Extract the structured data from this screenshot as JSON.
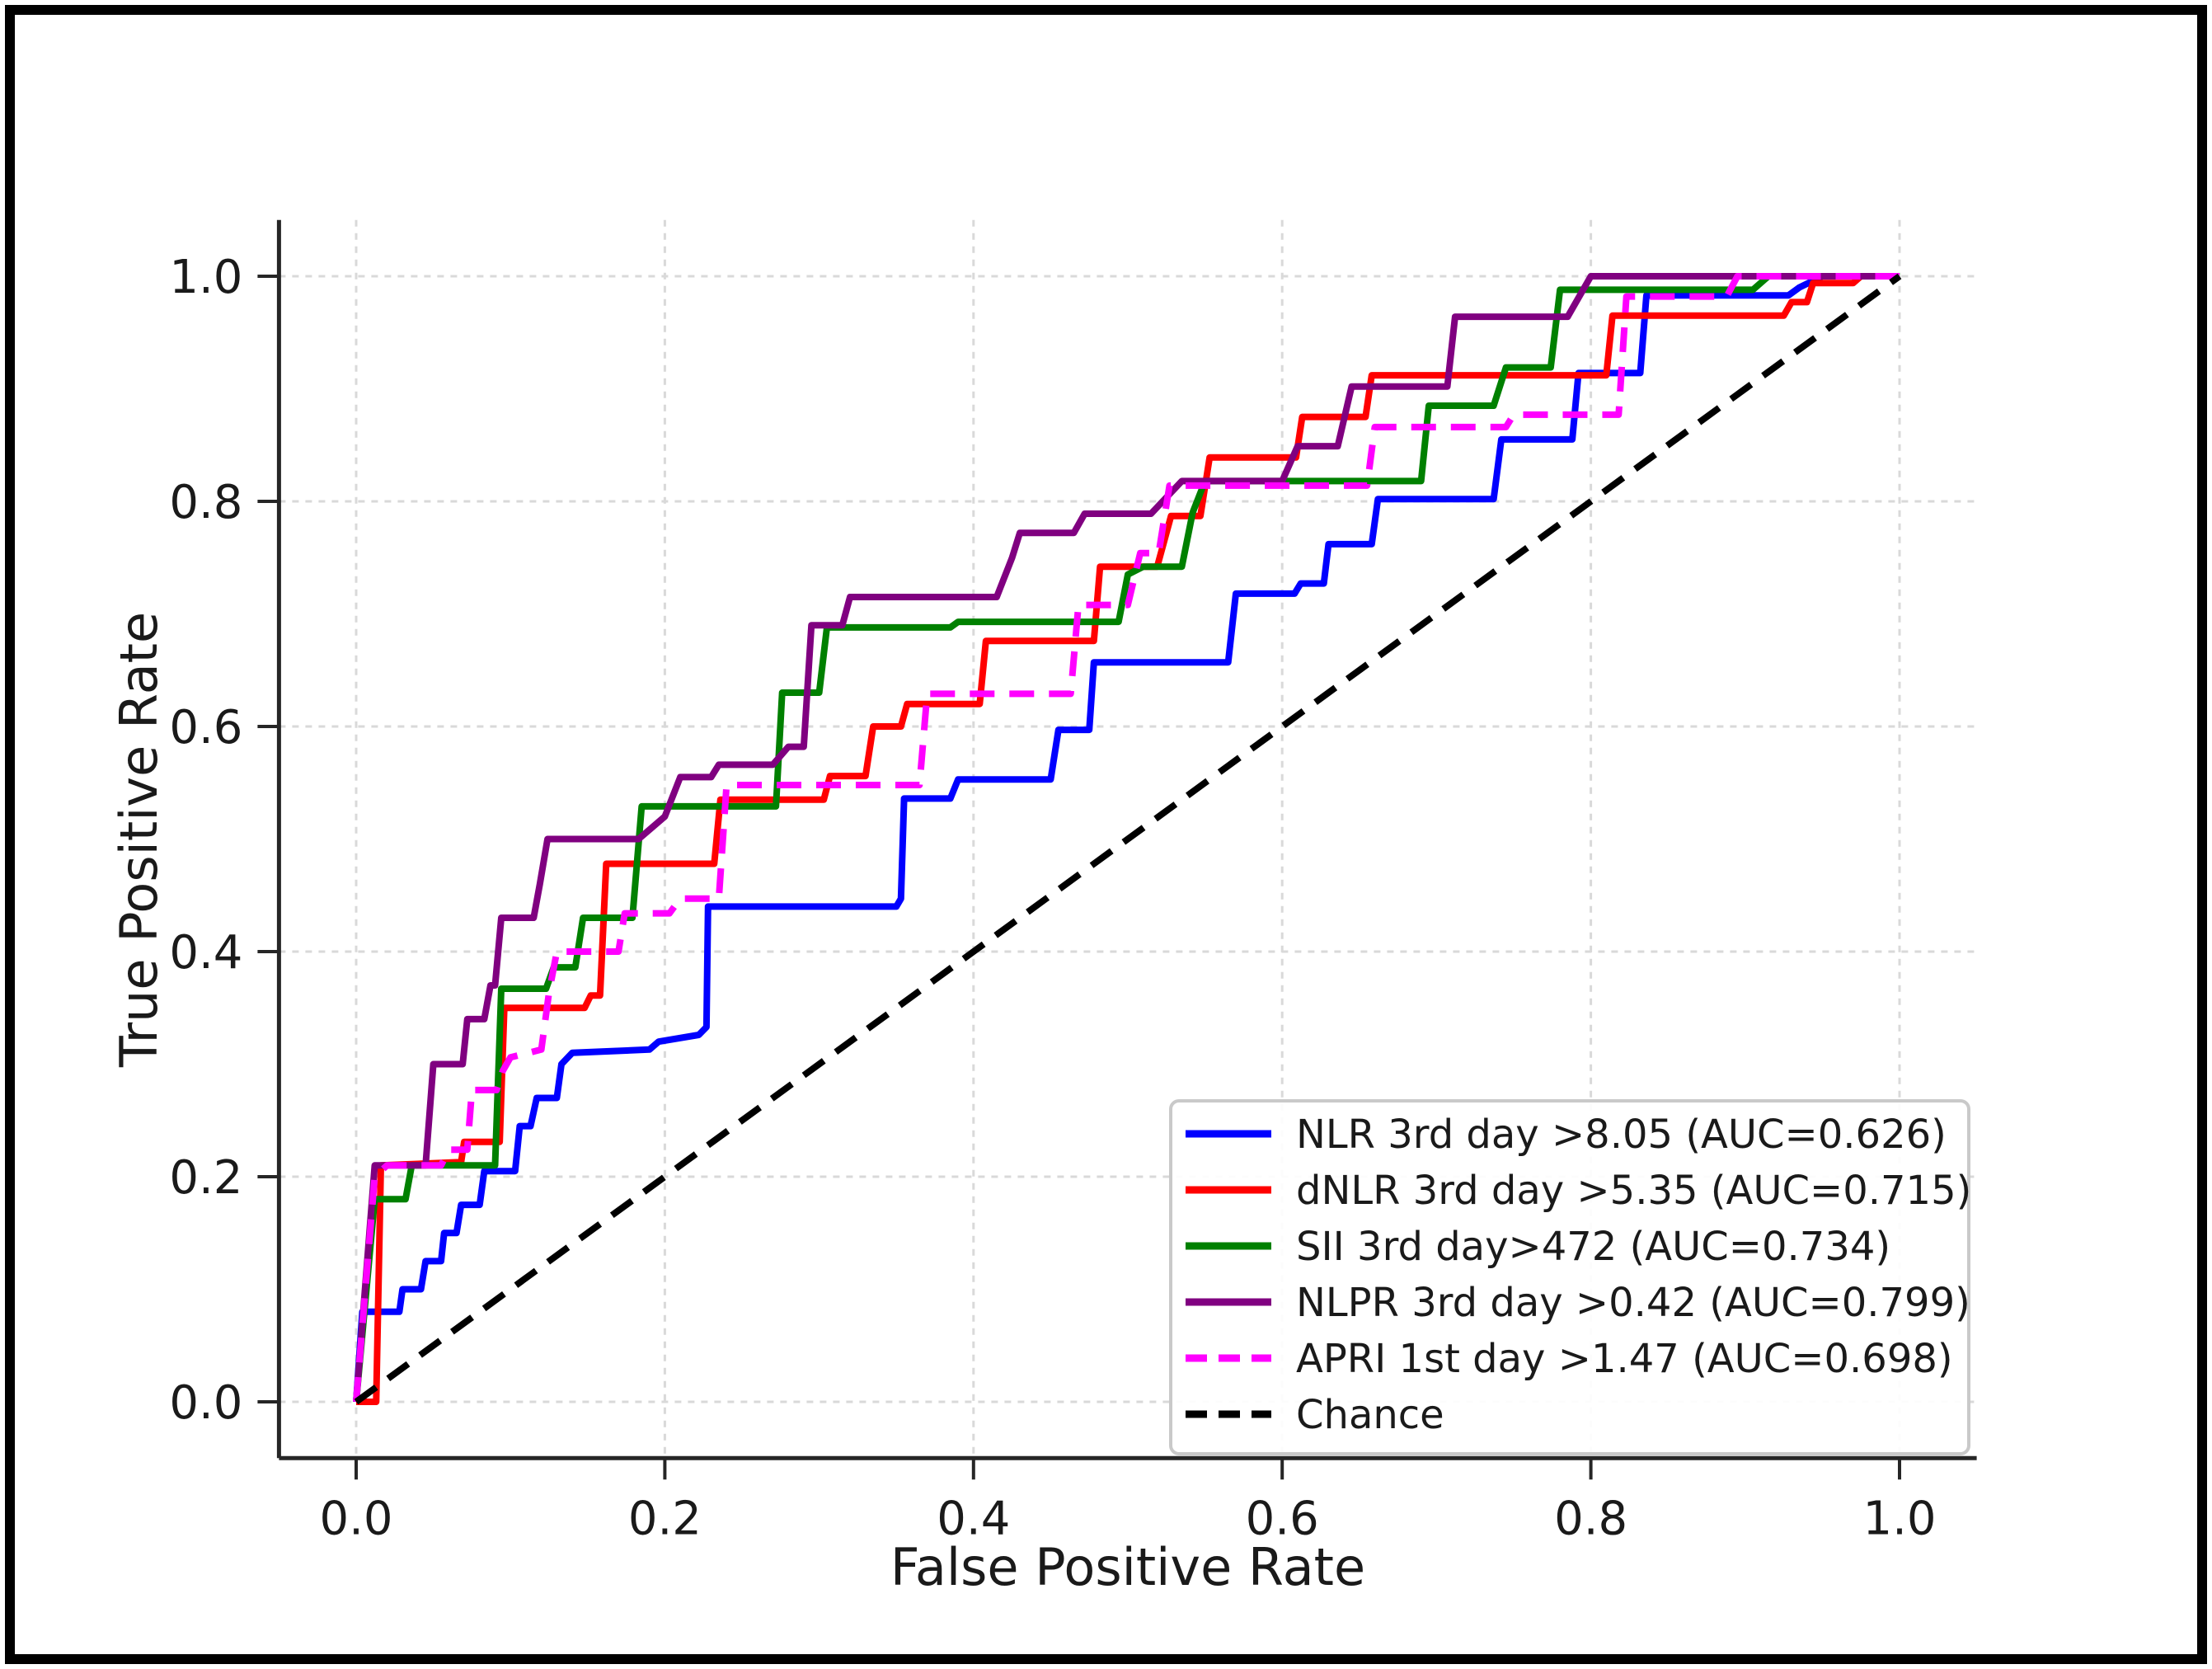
{
  "figure": {
    "background_color": "#ffffff",
    "border_color": "#000000",
    "grid_color": "#d9d9d9",
    "spine_color": "#262626",
    "text_color": "#1a1a1a",
    "legend_border_color": "#c9c9c9",
    "legend_background": "#ffffff"
  },
  "chart_data": {
    "type": "line",
    "title": "",
    "xlabel": "False Positive Rate",
    "ylabel": "True Positive Rate",
    "xlim": [
      -0.05,
      1.05
    ],
    "ylim": [
      -0.05,
      1.05
    ],
    "grid": true,
    "legend_position": "lower right",
    "xticks": [
      0.0,
      0.2,
      0.4,
      0.6,
      0.8,
      1.0
    ],
    "yticks": [
      0.0,
      0.2,
      0.4,
      0.6,
      0.8,
      1.0
    ],
    "xtick_labels": [
      "0.0",
      "0.2",
      "0.4",
      "0.6",
      "0.8",
      "1.0"
    ],
    "ytick_labels": [
      "0.0",
      "0.2",
      "0.4",
      "0.6",
      "0.8",
      "1.0"
    ],
    "series": [
      {
        "id": "nlr",
        "name": "NLR 3rd day >8.05 (AUC=0.626)",
        "auc": 0.626,
        "color": "#0000ff",
        "style": "solid",
        "points": [
          [
            0,
            0
          ],
          [
            0.004,
            0.08
          ],
          [
            0.028,
            0.08
          ],
          [
            0.03,
            0.1
          ],
          [
            0.042,
            0.1
          ],
          [
            0.045,
            0.125
          ],
          [
            0.055,
            0.125
          ],
          [
            0.057,
            0.15
          ],
          [
            0.065,
            0.15
          ],
          [
            0.068,
            0.175
          ],
          [
            0.08,
            0.175
          ],
          [
            0.083,
            0.205
          ],
          [
            0.103,
            0.205
          ],
          [
            0.106,
            0.245
          ],
          [
            0.113,
            0.245
          ],
          [
            0.117,
            0.27
          ],
          [
            0.13,
            0.27
          ],
          [
            0.133,
            0.3
          ],
          [
            0.14,
            0.31
          ],
          [
            0.19,
            0.313
          ],
          [
            0.196,
            0.32
          ],
          [
            0.222,
            0.326
          ],
          [
            0.227,
            0.333
          ],
          [
            0.228,
            0.44
          ],
          [
            0.35,
            0.44
          ],
          [
            0.353,
            0.447
          ],
          [
            0.355,
            0.536
          ],
          [
            0.385,
            0.536
          ],
          [
            0.39,
            0.553
          ],
          [
            0.45,
            0.553
          ],
          [
            0.455,
            0.597
          ],
          [
            0.475,
            0.597
          ],
          [
            0.478,
            0.657
          ],
          [
            0.565,
            0.657
          ],
          [
            0.57,
            0.718
          ],
          [
            0.608,
            0.718
          ],
          [
            0.612,
            0.727
          ],
          [
            0.627,
            0.727
          ],
          [
            0.63,
            0.762
          ],
          [
            0.658,
            0.762
          ],
          [
            0.662,
            0.802
          ],
          [
            0.737,
            0.802
          ],
          [
            0.742,
            0.855
          ],
          [
            0.788,
            0.855
          ],
          [
            0.792,
            0.914
          ],
          [
            0.832,
            0.914
          ],
          [
            0.836,
            0.983
          ],
          [
            0.928,
            0.983
          ],
          [
            0.935,
            0.99
          ],
          [
            0.95,
            1
          ],
          [
            1,
            1
          ]
        ]
      },
      {
        "id": "dnlr",
        "name": "dNLR 3rd day >5.35 (AUC=0.715)",
        "auc": 0.715,
        "color": "#ff0000",
        "style": "solid",
        "points": [
          [
            0,
            0
          ],
          [
            0.013,
            0
          ],
          [
            0.016,
            0.21
          ],
          [
            0.068,
            0.213
          ],
          [
            0.07,
            0.231
          ],
          [
            0.093,
            0.231
          ],
          [
            0.096,
            0.35
          ],
          [
            0.148,
            0.35
          ],
          [
            0.152,
            0.361
          ],
          [
            0.158,
            0.361
          ],
          [
            0.162,
            0.478
          ],
          [
            0.232,
            0.478
          ],
          [
            0.236,
            0.535
          ],
          [
            0.303,
            0.535
          ],
          [
            0.307,
            0.556
          ],
          [
            0.33,
            0.556
          ],
          [
            0.335,
            0.6
          ],
          [
            0.353,
            0.6
          ],
          [
            0.357,
            0.62
          ],
          [
            0.404,
            0.62
          ],
          [
            0.408,
            0.676
          ],
          [
            0.478,
            0.676
          ],
          [
            0.482,
            0.742
          ],
          [
            0.519,
            0.742
          ],
          [
            0.528,
            0.787
          ],
          [
            0.547,
            0.787
          ],
          [
            0.553,
            0.839
          ],
          [
            0.609,
            0.839
          ],
          [
            0.613,
            0.875
          ],
          [
            0.654,
            0.875
          ],
          [
            0.658,
            0.912
          ],
          [
            0.81,
            0.912
          ],
          [
            0.814,
            0.965
          ],
          [
            0.925,
            0.965
          ],
          [
            0.93,
            0.977
          ],
          [
            0.94,
            0.977
          ],
          [
            0.944,
            0.994
          ],
          [
            0.97,
            0.994
          ],
          [
            0.975,
            1
          ],
          [
            1,
            1
          ]
        ]
      },
      {
        "id": "sii",
        "name": "SII 3rd day>472 (AUC=0.734)",
        "auc": 0.734,
        "color": "#008000",
        "style": "solid",
        "points": [
          [
            0,
            0
          ],
          [
            0.012,
            0.18
          ],
          [
            0.032,
            0.18
          ],
          [
            0.036,
            0.21
          ],
          [
            0.09,
            0.21
          ],
          [
            0.094,
            0.367
          ],
          [
            0.123,
            0.367
          ],
          [
            0.128,
            0.386
          ],
          [
            0.142,
            0.386
          ],
          [
            0.147,
            0.43
          ],
          [
            0.179,
            0.43
          ],
          [
            0.185,
            0.529
          ],
          [
            0.272,
            0.529
          ],
          [
            0.276,
            0.63
          ],
          [
            0.3,
            0.63
          ],
          [
            0.305,
            0.688
          ],
          [
            0.385,
            0.688
          ],
          [
            0.39,
            0.693
          ],
          [
            0.494,
            0.693
          ],
          [
            0.5,
            0.735
          ],
          [
            0.51,
            0.742
          ],
          [
            0.535,
            0.742
          ],
          [
            0.542,
            0.79
          ],
          [
            0.55,
            0.818
          ],
          [
            0.69,
            0.818
          ],
          [
            0.695,
            0.885
          ],
          [
            0.737,
            0.885
          ],
          [
            0.745,
            0.919
          ],
          [
            0.774,
            0.919
          ],
          [
            0.78,
            0.988
          ],
          [
            0.905,
            0.988
          ],
          [
            0.915,
            1
          ],
          [
            1,
            1
          ]
        ]
      },
      {
        "id": "nlpr",
        "name": "NLPR 3rd day >0.42 (AUC=0.799)",
        "auc": 0.799,
        "color": "#800080",
        "style": "solid",
        "points": [
          [
            0,
            0
          ],
          [
            0.012,
            0.21
          ],
          [
            0.045,
            0.21
          ],
          [
            0.05,
            0.3
          ],
          [
            0.069,
            0.3
          ],
          [
            0.072,
            0.34
          ],
          [
            0.083,
            0.34
          ],
          [
            0.087,
            0.37
          ],
          [
            0.09,
            0.37
          ],
          [
            0.094,
            0.43
          ],
          [
            0.115,
            0.43
          ],
          [
            0.119,
            0.46
          ],
          [
            0.124,
            0.5
          ],
          [
            0.183,
            0.5
          ],
          [
            0.2,
            0.52
          ],
          [
            0.21,
            0.555
          ],
          [
            0.23,
            0.555
          ],
          [
            0.235,
            0.566
          ],
          [
            0.27,
            0.566
          ],
          [
            0.28,
            0.582
          ],
          [
            0.29,
            0.582
          ],
          [
            0.295,
            0.69
          ],
          [
            0.315,
            0.69
          ],
          [
            0.32,
            0.715
          ],
          [
            0.415,
            0.715
          ],
          [
            0.425,
            0.75
          ],
          [
            0.43,
            0.772
          ],
          [
            0.465,
            0.772
          ],
          [
            0.472,
            0.789
          ],
          [
            0.515,
            0.789
          ],
          [
            0.535,
            0.818
          ],
          [
            0.6,
            0.818
          ],
          [
            0.61,
            0.849
          ],
          [
            0.636,
            0.849
          ],
          [
            0.645,
            0.902
          ],
          [
            0.707,
            0.902
          ],
          [
            0.712,
            0.964
          ],
          [
            0.785,
            0.964
          ],
          [
            0.8,
            1
          ],
          [
            1,
            1
          ]
        ]
      },
      {
        "id": "apri",
        "name": "APRI 1st day >1.47 (AUC=0.698)",
        "auc": 0.698,
        "color": "#ff00ff",
        "style": "dashed",
        "points": [
          [
            0,
            0
          ],
          [
            0.012,
            0.2
          ],
          [
            0.02,
            0.21
          ],
          [
            0.055,
            0.21
          ],
          [
            0.06,
            0.224
          ],
          [
            0.072,
            0.224
          ],
          [
            0.075,
            0.277
          ],
          [
            0.091,
            0.277
          ],
          [
            0.095,
            0.294
          ],
          [
            0.1,
            0.306
          ],
          [
            0.12,
            0.313
          ],
          [
            0.125,
            0.364
          ],
          [
            0.13,
            0.4
          ],
          [
            0.17,
            0.4
          ],
          [
            0.174,
            0.434
          ],
          [
            0.203,
            0.434
          ],
          [
            0.21,
            0.447
          ],
          [
            0.235,
            0.447
          ],
          [
            0.24,
            0.548
          ],
          [
            0.365,
            0.548
          ],
          [
            0.37,
            0.629
          ],
          [
            0.463,
            0.629
          ],
          [
            0.468,
            0.708
          ],
          [
            0.5,
            0.708
          ],
          [
            0.508,
            0.754
          ],
          [
            0.52,
            0.754
          ],
          [
            0.527,
            0.814
          ],
          [
            0.655,
            0.814
          ],
          [
            0.66,
            0.866
          ],
          [
            0.745,
            0.866
          ],
          [
            0.75,
            0.877
          ],
          [
            0.818,
            0.877
          ],
          [
            0.823,
            0.982
          ],
          [
            0.888,
            0.982
          ],
          [
            0.895,
            1
          ],
          [
            1,
            1
          ]
        ]
      },
      {
        "id": "chance",
        "name": "Chance",
        "color": "#000000",
        "style": "dashed",
        "points": [
          [
            0,
            0
          ],
          [
            1,
            1
          ]
        ]
      }
    ]
  }
}
